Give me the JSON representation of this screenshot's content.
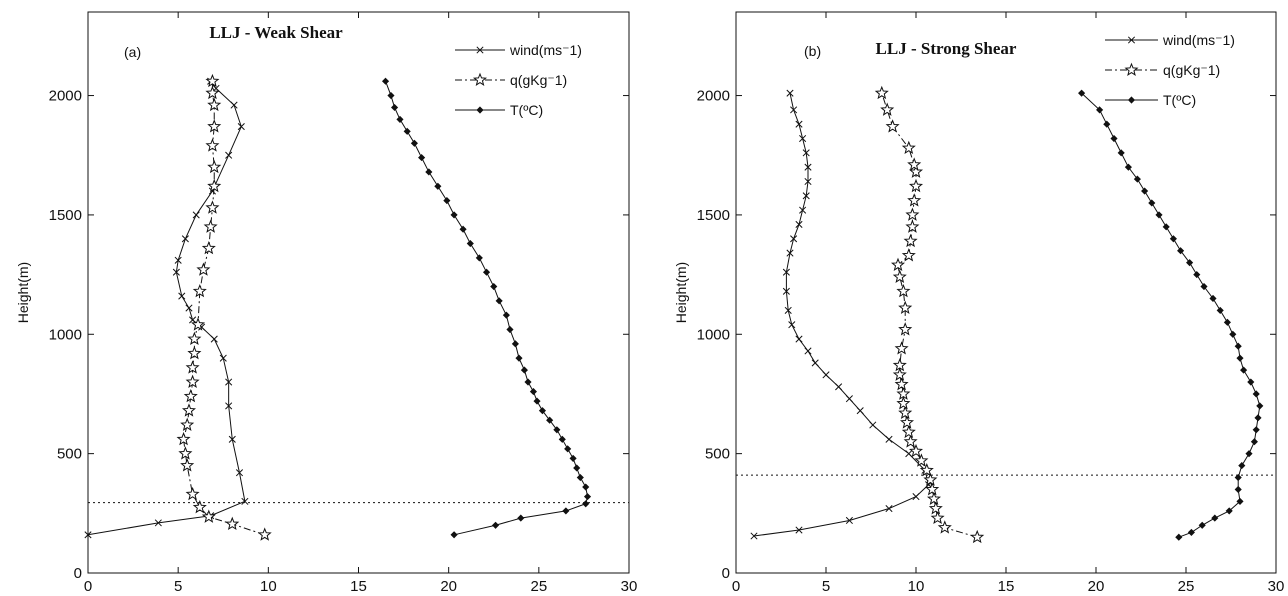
{
  "chart_data": [
    {
      "type": "line",
      "panel_label": "(a)",
      "title": "LLJ - Weak Shear",
      "xlabel": "",
      "ylabel": "Height(m)",
      "xlim": [
        0,
        30
      ],
      "ylim": [
        0,
        2350
      ],
      "xticks": [
        "0",
        "5",
        "10",
        "15",
        "20",
        "25",
        "30"
      ],
      "yticks": [
        "0",
        "500",
        "1000",
        "1500",
        "2000"
      ],
      "reference_line_y": 295,
      "legend_position": "top-right",
      "series": [
        {
          "name": "wind(ms⁻1)",
          "marker": "x",
          "line": "solid",
          "x": [
            0,
            3.9,
            6.8,
            8.7,
            8.4,
            8.0,
            7.8,
            7.8,
            7.5,
            7.0,
            6.3,
            5.8,
            5.6,
            5.2,
            4.9,
            5.0,
            5.4,
            6.0,
            6.9,
            7.8,
            8.5,
            8.1,
            7.1,
            6.8
          ],
          "y": [
            160,
            210,
            240,
            300,
            420,
            560,
            700,
            800,
            900,
            980,
            1030,
            1060,
            1110,
            1160,
            1260,
            1310,
            1400,
            1500,
            1600,
            1750,
            1870,
            1960,
            2030,
            2060
          ]
        },
        {
          "name": "q(gKg⁻1)",
          "marker": "star",
          "line": "dashdot",
          "x": [
            9.8,
            8.0,
            6.7,
            6.2,
            5.8,
            5.5,
            5.4,
            5.3,
            5.5,
            5.6,
            5.7,
            5.8,
            5.8,
            5.9,
            5.9,
            6.1,
            6.2,
            6.4,
            6.7,
            6.8,
            6.9,
            7.0,
            7.0,
            6.9,
            7.0,
            7.0,
            6.9,
            6.9
          ],
          "y": [
            160,
            205,
            235,
            275,
            330,
            450,
            500,
            560,
            620,
            680,
            740,
            800,
            860,
            920,
            980,
            1040,
            1180,
            1270,
            1360,
            1450,
            1530,
            1620,
            1700,
            1790,
            1870,
            1960,
            2010,
            2060
          ]
        },
        {
          "name": "T(ºC)",
          "marker": "diamond",
          "line": "solid",
          "x": [
            20.3,
            22.6,
            24.0,
            26.5,
            27.6,
            27.7,
            27.6,
            27.3,
            27.1,
            26.9,
            26.6,
            26.3,
            26.0,
            25.6,
            25.2,
            24.9,
            24.7,
            24.4,
            24.2,
            23.9,
            23.7,
            23.4,
            23.2,
            22.8,
            22.5,
            22.1,
            21.7,
            21.2,
            20.8,
            20.3,
            19.9,
            19.4,
            18.9,
            18.5,
            18.1,
            17.7,
            17.3,
            17.0,
            16.8,
            16.5
          ],
          "y": [
            160,
            200,
            230,
            260,
            290,
            320,
            360,
            400,
            440,
            480,
            520,
            560,
            600,
            640,
            680,
            720,
            760,
            800,
            850,
            900,
            960,
            1020,
            1080,
            1140,
            1200,
            1260,
            1320,
            1380,
            1440,
            1500,
            1560,
            1620,
            1680,
            1740,
            1800,
            1850,
            1900,
            1950,
            2000,
            2060
          ]
        }
      ]
    },
    {
      "type": "line",
      "panel_label": "(b)",
      "title": "LLJ - Strong Shear",
      "xlabel": "",
      "ylabel": "Height(m)",
      "xlim": [
        0,
        30
      ],
      "ylim": [
        0,
        2350
      ],
      "xticks": [
        "0",
        "5",
        "10",
        "15",
        "20",
        "25",
        "30"
      ],
      "yticks": [
        "0",
        "500",
        "1000",
        "1500",
        "2000"
      ],
      "reference_line_y": 410,
      "legend_position": "top-right",
      "series": [
        {
          "name": "wind(ms⁻1)",
          "marker": "x",
          "line": "solid",
          "x": [
            1.0,
            3.5,
            6.3,
            8.5,
            10.0,
            10.7,
            10.5,
            9.6,
            8.5,
            7.6,
            6.9,
            6.3,
            5.7,
            5.0,
            4.4,
            4.0,
            3.5,
            3.1,
            2.9,
            2.8,
            2.8,
            3.0,
            3.2,
            3.5,
            3.7,
            3.9,
            4.0,
            4.0,
            3.9,
            3.7,
            3.5,
            3.2,
            3.0
          ],
          "y": [
            155,
            180,
            220,
            270,
            320,
            370,
            430,
            500,
            560,
            620,
            680,
            730,
            780,
            830,
            880,
            930,
            980,
            1040,
            1100,
            1180,
            1260,
            1340,
            1400,
            1460,
            1520,
            1580,
            1640,
            1700,
            1760,
            1820,
            1880,
            1940,
            2010
          ]
        },
        {
          "name": "q(gKg⁻1)",
          "marker": "star",
          "line": "dashdot",
          "x": [
            13.4,
            11.6,
            11.2,
            11.1,
            11.0,
            10.9,
            10.8,
            10.6,
            10.3,
            10.0,
            9.7,
            9.6,
            9.5,
            9.4,
            9.3,
            9.3,
            9.2,
            9.1,
            9.1,
            9.2,
            9.4,
            9.4,
            9.3,
            9.1,
            9.0,
            9.6,
            9.7,
            9.8,
            9.8,
            9.9,
            10.0,
            10.0,
            9.9,
            9.6,
            8.7,
            8.4,
            8.1
          ],
          "y": [
            150,
            190,
            230,
            270,
            310,
            350,
            390,
            430,
            470,
            510,
            550,
            590,
            630,
            670,
            710,
            750,
            790,
            830,
            870,
            940,
            1020,
            1110,
            1180,
            1240,
            1290,
            1330,
            1390,
            1450,
            1500,
            1560,
            1620,
            1680,
            1710,
            1780,
            1870,
            1940,
            2010
          ]
        },
        {
          "name": "T(ºC)",
          "marker": "diamond",
          "line": "solid",
          "x": [
            24.6,
            25.3,
            25.9,
            26.6,
            27.4,
            28.0,
            27.9,
            27.9,
            28.1,
            28.5,
            28.8,
            28.9,
            29.0,
            29.1,
            28.9,
            28.6,
            28.2,
            28.0,
            27.9,
            27.6,
            27.3,
            26.9,
            26.5,
            26.0,
            25.6,
            25.2,
            24.7,
            24.3,
            23.9,
            23.5,
            23.1,
            22.7,
            22.3,
            21.8,
            21.4,
            21.0,
            20.6,
            20.2,
            19.2
          ],
          "y": [
            150,
            170,
            200,
            230,
            260,
            300,
            350,
            400,
            450,
            500,
            550,
            600,
            650,
            700,
            750,
            800,
            850,
            900,
            950,
            1000,
            1050,
            1100,
            1150,
            1200,
            1250,
            1300,
            1350,
            1400,
            1450,
            1500,
            1550,
            1600,
            1650,
            1700,
            1760,
            1820,
            1880,
            1940,
            2010
          ]
        }
      ]
    }
  ]
}
